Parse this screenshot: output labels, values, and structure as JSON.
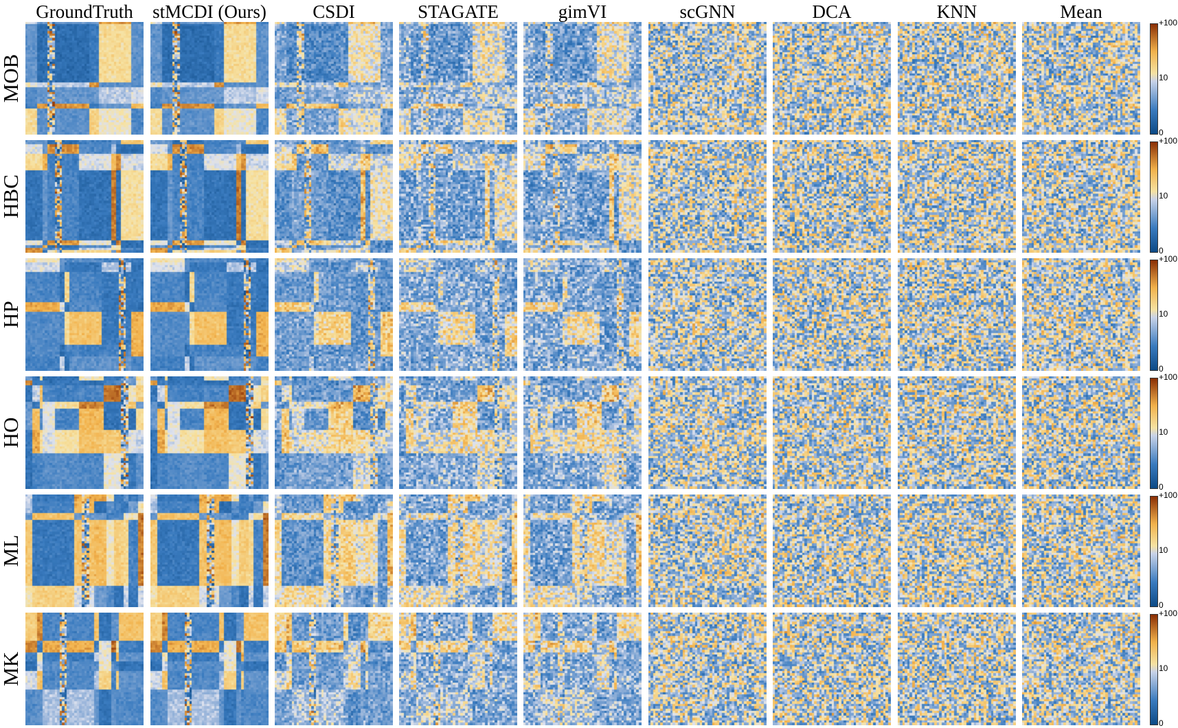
{
  "figure": {
    "columns": [
      "GroundTruth",
      "stMCDI (Ours)",
      "CSDI",
      "STAGATE",
      "gimVI",
      "scGNN",
      "DCA",
      "KNN",
      "Mean"
    ],
    "rows": [
      "MOB",
      "HBC",
      "HP",
      "HO",
      "ML",
      "MK"
    ]
  },
  "colorbar": {
    "ticks": [
      "+100",
      "10",
      "0"
    ]
  },
  "colors": {
    "low": "#0d4a86",
    "mid_blue": "#3a7bbf",
    "mid": "#c9d3e8",
    "mid_yellow": "#f6e2a3",
    "high_orange": "#f2b24c",
    "high": "#8a2f05"
  },
  "chart_data": {
    "type": "heatmap",
    "title": "",
    "xlabel": "",
    "ylabel": "",
    "column_titles": [
      "GroundTruth",
      "stMCDI (Ours)",
      "CSDI",
      "STAGATE",
      "gimVI",
      "scGNN",
      "DCA",
      "KNN",
      "Mean"
    ],
    "row_titles": [
      "MOB",
      "HBC",
      "HP",
      "HO",
      "ML",
      "MK"
    ],
    "color_scale": {
      "min": 0,
      "mid": 10,
      "max": 100,
      "tick_labels": [
        "0",
        "10",
        "+100"
      ]
    },
    "panel_noise_level": [
      0.1,
      0.1,
      0.4,
      0.55,
      0.55,
      0.9,
      0.95,
      0.95,
      0.95
    ]
  }
}
